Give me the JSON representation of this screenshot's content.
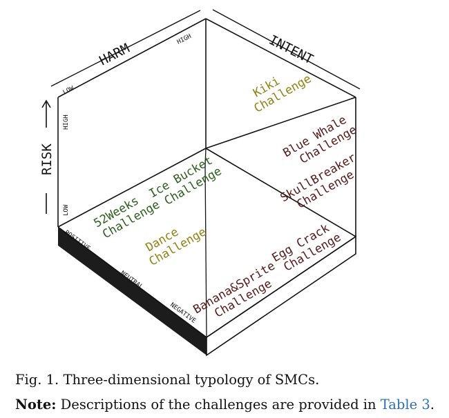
{
  "colors": {
    "green": "#2c5e1e",
    "olive": "#948012",
    "maroon": "#571a18",
    "link": "#2a6fb5"
  },
  "axes": {
    "harm": "HARM",
    "harm_low": "LOW",
    "harm_high": "HIGH",
    "intent": "INTENT",
    "risk": "RISK",
    "risk_high": "HIGH",
    "risk_low": "LOW",
    "positive": "POSITIVE",
    "neutral": "NEUTRAL",
    "negative": "NEGATIVE"
  },
  "challenges": {
    "kiki": [
      "Kiki",
      "Challenge"
    ],
    "blue_whale": [
      "Blue Whale",
      "Challenge"
    ],
    "skull_breaker": [
      "SkullBreaker",
      "Challenge"
    ],
    "ice_bucket": [
      "Ice Bucket",
      "Challenge"
    ],
    "weeks52": [
      "52Weeks",
      "Challenge"
    ],
    "dance": [
      "Dance",
      "Challenge"
    ],
    "egg_crack": [
      "Egg Crack",
      "Challenge"
    ],
    "banana_sprite": [
      "Banana&Sprite",
      "Challenge"
    ]
  },
  "caption": {
    "fig": "Fig. 1. Three-dimensional typology of SMCs.",
    "note_label": "Note:",
    "note_text": " Descriptions of the challenges are provided in ",
    "note_link": "Table 3",
    "note_end": "."
  }
}
